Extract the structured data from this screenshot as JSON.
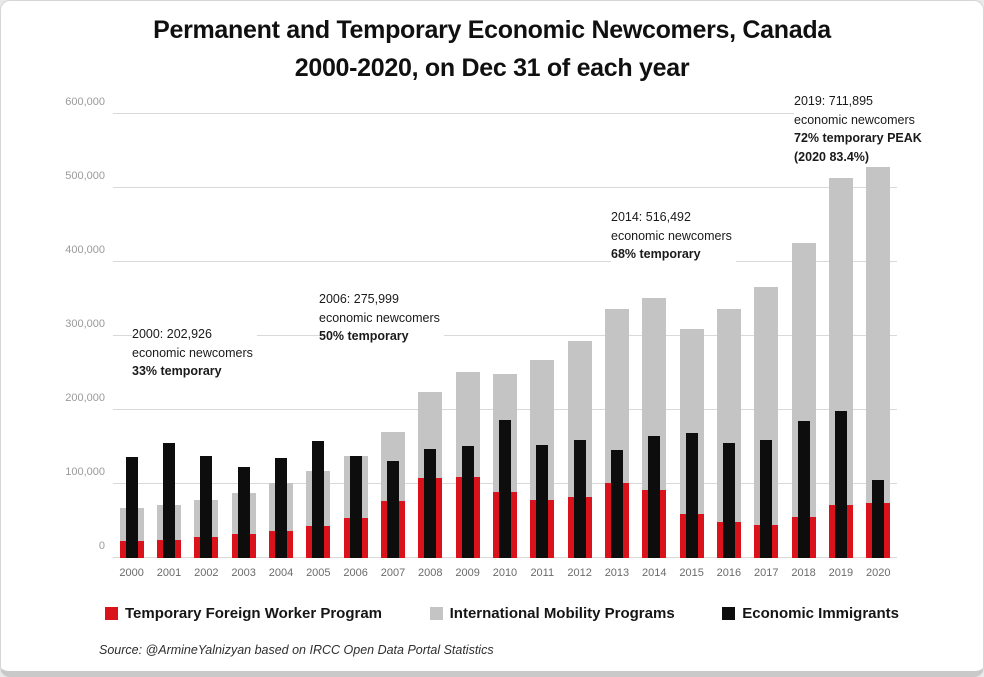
{
  "title": {
    "line1": "Permanent and Temporary Economic Newcomers, Canada",
    "line2": "2000-2020, on Dec 31 of each year"
  },
  "chart_data": {
    "type": "bar",
    "subtype": "stacked-temporary-with-permanent-overlay",
    "title": "Permanent and Temporary Economic Newcomers, Canada 2000-2020, on Dec 31 of each year",
    "categories": [
      "2000",
      "2001",
      "2002",
      "2003",
      "2004",
      "2005",
      "2006",
      "2007",
      "2008",
      "2009",
      "2010",
      "2011",
      "2012",
      "2013",
      "2014",
      "2015",
      "2016",
      "2017",
      "2018",
      "2019",
      "2020"
    ],
    "series": [
      {
        "name": "Temporary Foreign Worker Program",
        "role": "stack-bottom",
        "color": "#da121c",
        "values": [
          22500,
          25000,
          29000,
          33000,
          37000,
          43000,
          54000,
          77000,
          108000,
          110000,
          89000,
          78000,
          83000,
          101000,
          92000,
          59000,
          49000,
          44000,
          55000,
          72000,
          74000
        ]
      },
      {
        "name": "International Mobility Programs",
        "role": "stack-top",
        "color": "#c4c4c4",
        "values": [
          44500,
          46500,
          49500,
          55000,
          65000,
          74000,
          84000,
          93000,
          117000,
          141000,
          160000,
          189000,
          210000,
          236000,
          259000,
          250000,
          288000,
          322000,
          371000,
          441000,
          461000
        ]
      },
      {
        "name": "Economic Immigrants",
        "role": "overlay",
        "color": "#0d0d0d",
        "values": [
          136000,
          156000,
          138000,
          123000,
          135000,
          158000,
          138000,
          131000,
          147000,
          151000,
          186000,
          153000,
          159000,
          146000,
          165000,
          169000,
          155000,
          159000,
          185000,
          199000,
          105000
        ]
      }
    ],
    "ylim": [
      0,
      600000
    ],
    "ytick_interval": 100000,
    "ytick_labels": [
      "0",
      "100,000",
      "200,000",
      "300,000",
      "400,000",
      "500,000",
      "600,000"
    ],
    "xlabel": "",
    "ylabel": "",
    "grid": true,
    "legend_position": "bottom"
  },
  "annotations": [
    {
      "id": "ann-2000",
      "bold_from": 2,
      "lines": [
        "2000: 202,926",
        "economic newcomers",
        "33% temporary"
      ]
    },
    {
      "id": "ann-2006",
      "bold_from": 2,
      "lines": [
        "2006: 275,999",
        "economic newcomers",
        "50% temporary"
      ]
    },
    {
      "id": "ann-2014",
      "bold_from": 2,
      "lines": [
        "2014: 516,492",
        "economic newcomers",
        "68% temporary"
      ]
    },
    {
      "id": "ann-2019",
      "bold_from": 2,
      "lines": [
        "2019:  711,895",
        "economic newcomers",
        "72% temporary  PEAK",
        "(2020  83.4%)"
      ]
    }
  ],
  "source": "Source: @ArmineYalnizyan based on IRCC Open Data Portal Statistics",
  "colors": {
    "tfwp": "#da121c",
    "imp": "#c4c4c4",
    "immigrants": "#0d0d0d",
    "gridline": "#d9d9d9"
  }
}
